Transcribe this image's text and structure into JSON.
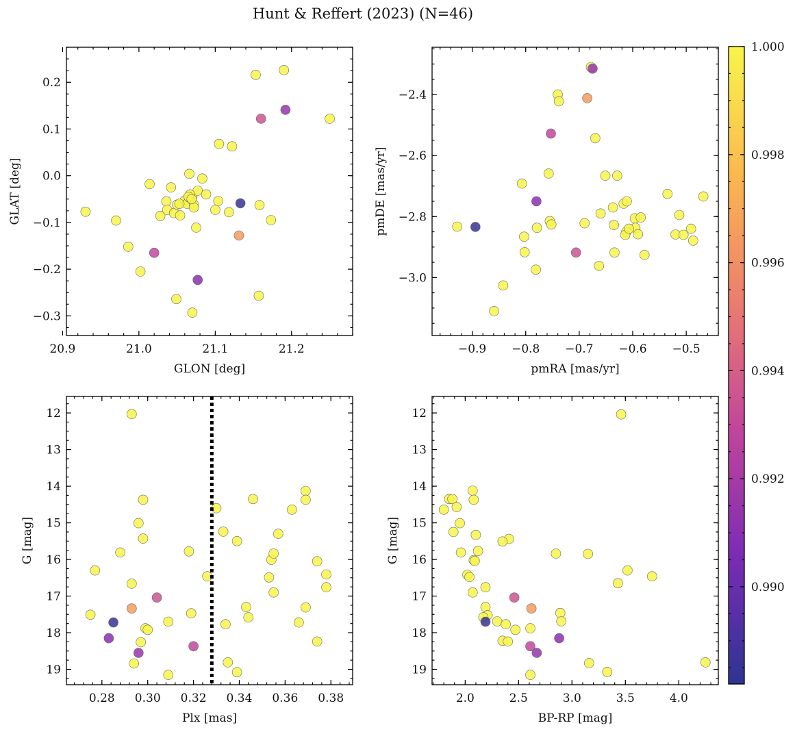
{
  "figure": {
    "title": "Hunt & Reffert (2023) (N=46)"
  },
  "colorbar": {
    "vmin": 0.9882,
    "vmax": 1.0,
    "ticks": [
      0.99,
      0.992,
      0.994,
      0.996,
      0.998,
      1.0
    ],
    "tick_labels": [
      "0.990",
      "0.992",
      "0.994",
      "0.996",
      "0.998",
      "1.000"
    ],
    "colormap": "plasma",
    "colormap_stops": [
      "#2d3592",
      "#7b2bb5",
      "#c2459c",
      "#eb7d6f",
      "#fcb84f",
      "#f8f54a"
    ]
  },
  "chart_data": [
    {
      "type": "scatter",
      "id": "sky",
      "xlabel": "GLON [deg]",
      "ylabel": "GLAT [deg]",
      "xlim": [
        20.905,
        21.28
      ],
      "ylim": [
        -0.342,
        0.275
      ],
      "xticks": [
        20.9,
        21.0,
        21.1,
        21.2
      ],
      "xtick_labels": [
        "20.9",
        "21.0",
        "21.1",
        "21.2"
      ],
      "yticks": [
        -0.3,
        -0.2,
        -0.1,
        0.0,
        0.1,
        0.2
      ],
      "ytick_labels": [
        "−0.3",
        "−0.2",
        "−0.1",
        "0.0",
        "0.1",
        "0.2"
      ],
      "x": [
        21.153,
        21.19,
        21.192,
        21.16,
        21.25,
        21.105,
        21.122,
        20.93,
        20.97,
        20.986,
        21.002,
        21.014,
        21.02,
        21.028,
        21.036,
        21.037,
        21.042,
        21.046,
        21.05,
        21.054,
        21.06,
        21.063,
        21.066,
        21.066,
        21.07,
        21.072,
        21.072,
        21.075,
        21.077,
        21.083,
        21.088,
        21.1,
        21.104,
        21.118,
        21.133,
        21.131,
        21.158,
        21.157,
        21.173,
        21.077,
        21.049,
        21.07,
        21.067,
        21.065,
        21.069,
        21.053
      ],
      "y": [
        0.216,
        0.226,
        0.141,
        0.122,
        0.122,
        0.068,
        0.063,
        -0.077,
        -0.096,
        -0.152,
        -0.205,
        -0.018,
        -0.165,
        -0.086,
        -0.055,
        -0.073,
        -0.025,
        -0.08,
        -0.062,
        -0.085,
        -0.053,
        -0.06,
        0.004,
        -0.047,
        -0.045,
        -0.062,
        -0.068,
        -0.111,
        -0.032,
        -0.006,
        -0.04,
        -0.073,
        -0.054,
        -0.078,
        -0.059,
        -0.128,
        -0.063,
        -0.257,
        -0.095,
        -0.223,
        -0.264,
        -0.293,
        -0.04,
        -0.045,
        -0.05,
        -0.06
      ],
      "c": [
        1.0,
        1.0,
        0.9915,
        0.9935,
        1.0,
        1.0,
        1.0,
        1.0,
        1.0,
        1.0,
        1.0,
        1.0,
        0.993,
        1.0,
        1.0,
        1.0,
        1.0,
        1.0,
        1.0,
        1.0,
        1.0,
        1.0,
        1.0,
        1.0,
        1.0,
        1.0,
        1.0,
        1.0,
        1.0,
        1.0,
        1.0,
        1.0,
        1.0,
        1.0,
        0.9885,
        0.9965,
        1.0,
        1.0,
        1.0,
        0.991,
        1.0,
        1.0,
        1.0,
        1.0,
        1.0,
        1.0
      ]
    },
    {
      "type": "scatter",
      "id": "pm",
      "xlabel": "pmRA [mas/yr]",
      "ylabel": "pmDE [mas/yr]",
      "xlim": [
        -0.975,
        -0.44
      ],
      "ylim": [
        -3.19,
        -2.245
      ],
      "xticks": [
        -0.9,
        -0.8,
        -0.7,
        -0.6,
        -0.5
      ],
      "xtick_labels": [
        "−0.9",
        "−0.8",
        "−0.7",
        "−0.6",
        "−0.5"
      ],
      "yticks": [
        -3.0,
        -2.8,
        -2.6,
        -2.4
      ],
      "ytick_labels": [
        "−3.0",
        "−2.8",
        "−2.6",
        "−2.4"
      ],
      "x": [
        -0.678,
        -0.675,
        -0.685,
        -0.74,
        -0.738,
        -0.753,
        -0.67,
        -0.757,
        -0.807,
        -0.651,
        -0.629,
        -0.535,
        -0.468,
        -0.928,
        -0.894,
        -0.78,
        -0.803,
        -0.755,
        -0.752,
        -0.779,
        -0.69,
        -0.66,
        -0.637,
        -0.617,
        -0.611,
        -0.612,
        -0.596,
        -0.595,
        -0.59,
        -0.585,
        -0.513,
        -0.52,
        -0.505,
        -0.491,
        -0.487,
        -0.635,
        -0.634,
        -0.706,
        -0.663,
        -0.781,
        -0.842,
        -0.859,
        -0.802,
        -0.578,
        -0.614,
        -0.607
      ],
      "y": [
        -2.31,
        -2.315,
        -2.412,
        -2.4,
        -2.422,
        -2.528,
        -2.543,
        -2.659,
        -2.692,
        -2.666,
        -2.666,
        -2.726,
        -2.734,
        -2.833,
        -2.834,
        -2.75,
        -2.866,
        -2.815,
        -2.826,
        -2.837,
        -2.822,
        -2.79,
        -2.77,
        -2.758,
        -2.75,
        -2.85,
        -2.806,
        -2.837,
        -2.858,
        -2.803,
        -2.795,
        -2.859,
        -2.86,
        -2.84,
        -2.879,
        -2.828,
        -2.918,
        -2.918,
        -2.962,
        -2.974,
        -3.026,
        -3.11,
        -2.917,
        -2.926,
        -2.86,
        -2.84
      ],
      "c": [
        1.0,
        0.9915,
        0.9965,
        1.0,
        1.0,
        0.993,
        1.0,
        1.0,
        1.0,
        1.0,
        1.0,
        1.0,
        1.0,
        1.0,
        0.9885,
        0.991,
        1.0,
        1.0,
        1.0,
        1.0,
        1.0,
        1.0,
        1.0,
        1.0,
        1.0,
        1.0,
        1.0,
        1.0,
        1.0,
        1.0,
        1.0,
        1.0,
        1.0,
        1.0,
        1.0,
        1.0,
        1.0,
        0.9935,
        1.0,
        1.0,
        1.0,
        1.0,
        1.0,
        1.0,
        1.0,
        1.0
      ]
    },
    {
      "type": "scatter",
      "id": "plx",
      "xlabel": "Plx [mas]",
      "ylabel": "G [mag]",
      "xlim": [
        0.2645,
        0.3895
      ],
      "ylim": [
        19.42,
        11.55
      ],
      "xticks": [
        0.28,
        0.3,
        0.32,
        0.34,
        0.36,
        0.38
      ],
      "xtick_labels": [
        "0.28",
        "0.30",
        "0.32",
        "0.34",
        "0.36",
        "0.38"
      ],
      "yticks": [
        12,
        13,
        14,
        15,
        16,
        17,
        18,
        19
      ],
      "ytick_labels": [
        "12",
        "13",
        "14",
        "15",
        "16",
        "17",
        "18",
        "19"
      ],
      "x": [
        0.293,
        0.369,
        0.369,
        0.298,
        0.346,
        0.33,
        0.363,
        0.296,
        0.298,
        0.333,
        0.339,
        0.357,
        0.288,
        0.318,
        0.354,
        0.374,
        0.277,
        0.326,
        0.293,
        0.275,
        0.285,
        0.299,
        0.3,
        0.297,
        0.283,
        0.296,
        0.309,
        0.304,
        0.319,
        0.32,
        0.334,
        0.343,
        0.344,
        0.353,
        0.355,
        0.366,
        0.369,
        0.374,
        0.378,
        0.378,
        0.293,
        0.294,
        0.309,
        0.335,
        0.339,
        0.355
      ],
      "y": [
        12.03,
        14.13,
        14.37,
        14.37,
        14.35,
        14.6,
        14.64,
        15.01,
        15.43,
        15.24,
        15.5,
        15.3,
        15.81,
        15.78,
        16.01,
        16.05,
        16.3,
        16.46,
        16.66,
        17.51,
        17.72,
        17.88,
        17.92,
        18.26,
        18.15,
        18.55,
        17.7,
        17.04,
        17.47,
        18.37,
        17.77,
        17.3,
        17.58,
        16.49,
        16.9,
        17.72,
        17.31,
        18.24,
        16.41,
        16.76,
        17.34,
        18.84,
        19.15,
        18.81,
        19.08,
        15.84
      ],
      "c": [
        1.0,
        1.0,
        1.0,
        1.0,
        1.0,
        1.0,
        1.0,
        1.0,
        1.0,
        1.0,
        1.0,
        1.0,
        1.0,
        1.0,
        1.0,
        1.0,
        1.0,
        1.0,
        1.0,
        1.0,
        0.9885,
        1.0,
        1.0,
        1.0,
        0.991,
        0.9915,
        1.0,
        0.9935,
        1.0,
        0.993,
        1.0,
        1.0,
        1.0,
        1.0,
        1.0,
        1.0,
        1.0,
        1.0,
        1.0,
        1.0,
        0.9965,
        1.0,
        1.0,
        1.0,
        1.0,
        1.0
      ],
      "vline": {
        "x": 0.328,
        "style": "dotted",
        "color": "#000000"
      }
    },
    {
      "type": "scatter",
      "id": "cmd",
      "xlabel": "BP-RP [mag]",
      "ylabel": "G [mag]",
      "xlim": [
        1.69,
        4.37
      ],
      "ylim": [
        19.42,
        11.55
      ],
      "xticks": [
        2.0,
        2.5,
        3.0,
        3.5,
        4.0
      ],
      "xtick_labels": [
        "2.0",
        "2.5",
        "3.0",
        "3.5",
        "4.0"
      ],
      "yticks": [
        12,
        13,
        14,
        15,
        16,
        17,
        18,
        19
      ],
      "ytick_labels": [
        "12",
        "13",
        "14",
        "15",
        "16",
        "17",
        "18",
        "19"
      ],
      "x": [
        3.46,
        2.07,
        1.85,
        1.88,
        1.8,
        1.92,
        2.08,
        1.95,
        1.89,
        2.1,
        2.41,
        2.35,
        1.96,
        2.12,
        2.08,
        2.09,
        3.15,
        3.52,
        2.02,
        2.04,
        2.19,
        3.43,
        3.75,
        2.46,
        2.62,
        2.07,
        2.19,
        2.21,
        2.17,
        2.19,
        2.3,
        2.38,
        2.47,
        2.61,
        2.89,
        2.9,
        2.35,
        2.4,
        2.61,
        2.67,
        2.88,
        2.61,
        3.16,
        3.33,
        4.25,
        2.85
      ],
      "y": [
        12.04,
        14.12,
        14.35,
        14.35,
        14.64,
        14.57,
        14.37,
        15.01,
        15.25,
        15.33,
        15.44,
        15.51,
        15.81,
        15.77,
        16.02,
        16.04,
        15.85,
        16.3,
        16.42,
        16.48,
        16.76,
        16.65,
        16.46,
        17.04,
        17.34,
        16.9,
        17.3,
        17.52,
        17.58,
        17.7,
        17.69,
        17.77,
        17.92,
        17.88,
        17.46,
        17.69,
        18.22,
        18.24,
        18.37,
        18.55,
        18.15,
        19.15,
        18.83,
        19.07,
        18.81,
        15.84
      ],
      "c": [
        1.0,
        1.0,
        1.0,
        1.0,
        1.0,
        1.0,
        1.0,
        1.0,
        1.0,
        1.0,
        1.0,
        1.0,
        1.0,
        1.0,
        1.0,
        1.0,
        1.0,
        1.0,
        1.0,
        1.0,
        1.0,
        1.0,
        1.0,
        0.9935,
        0.9965,
        1.0,
        1.0,
        1.0,
        1.0,
        0.9885,
        1.0,
        1.0,
        1.0,
        1.0,
        1.0,
        1.0,
        1.0,
        1.0,
        0.993,
        0.9915,
        0.991,
        1.0,
        1.0,
        1.0,
        1.0,
        1.0
      ]
    }
  ]
}
